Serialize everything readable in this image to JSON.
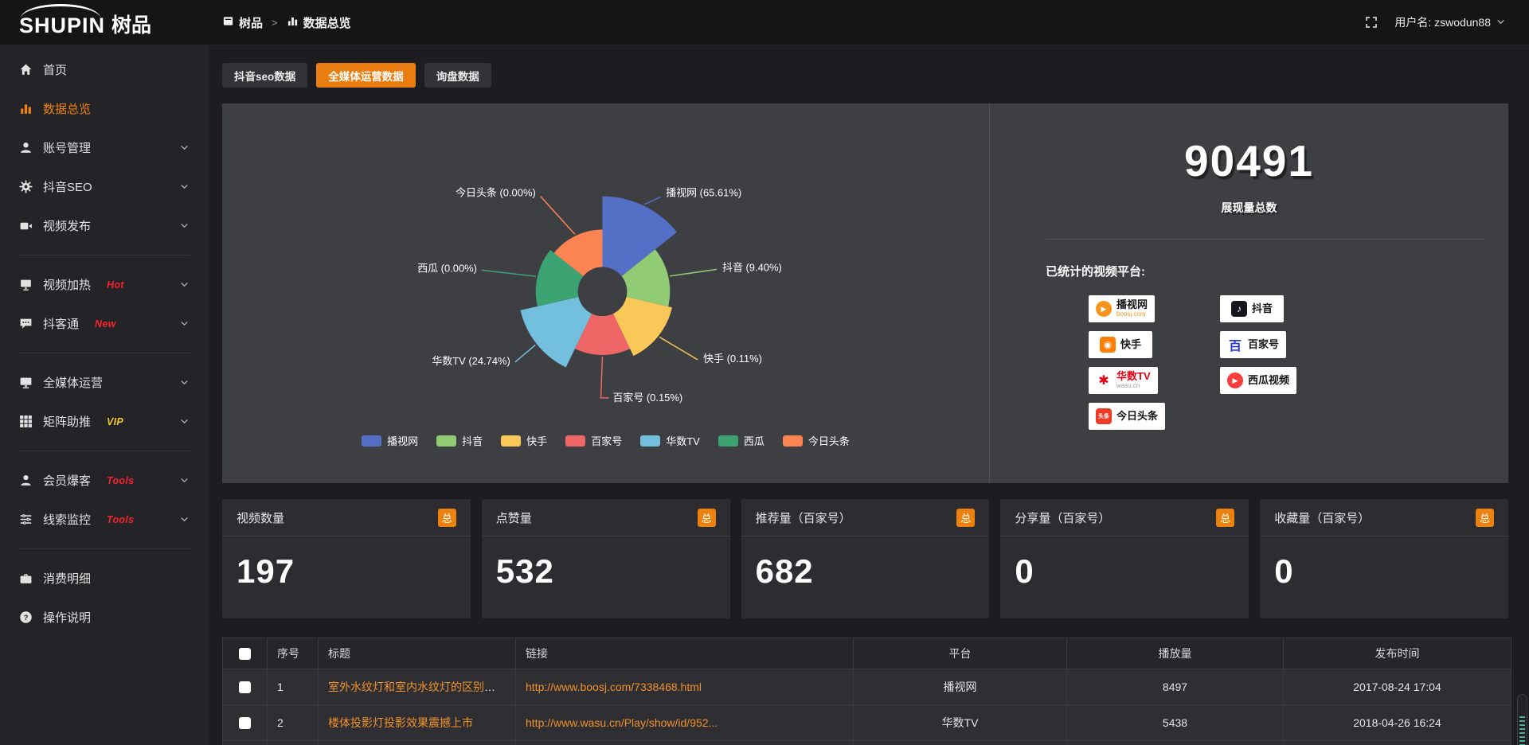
{
  "topbar": {
    "logo_main": "SHUPIN",
    "logo_cn": "树品",
    "breadcrumb": {
      "app": "树品",
      "separator": ">",
      "page": "数据总览"
    },
    "username": "用户名: zswodun88"
  },
  "colors": {
    "accent": "#ed810e",
    "link_text": "#f0922b",
    "hot_badge": "#f5222d",
    "vip_badge": "#f7c631"
  },
  "sidebar": {
    "items": [
      {
        "label": "首页",
        "icon": "home-icon"
      },
      {
        "label": "数据总览",
        "icon": "bar-chart-icon",
        "active": true
      },
      {
        "label": "账号管理",
        "icon": "user-icon",
        "chevron": true
      },
      {
        "label": "抖音SEO",
        "icon": "gear-icon",
        "chevron": true
      },
      {
        "label": "视频发布",
        "icon": "video-icon",
        "chevron": true
      },
      {
        "type": "divider"
      },
      {
        "label": "视频加热",
        "icon": "heat-icon",
        "badge": "Hot",
        "badge_color": "#f5222d",
        "chevron": true
      },
      {
        "label": "抖客通",
        "icon": "chat-icon",
        "badge": "New",
        "badge_color": "#f5222d",
        "chevron": true
      },
      {
        "type": "divider"
      },
      {
        "label": "全媒体运营",
        "icon": "monitor-icon",
        "chevron": true
      },
      {
        "label": "矩阵助推",
        "icon": "grid-icon",
        "badge": "VIP",
        "badge_color": "#f7c631",
        "chevron": true
      },
      {
        "type": "divider"
      },
      {
        "label": "会员爆客",
        "icon": "member-icon",
        "badge": "Tools",
        "badge_color": "#f5222d",
        "chevron": true
      },
      {
        "label": "线索监控",
        "icon": "sliders-icon",
        "badge": "Tools",
        "badge_color": "#f5222d",
        "chevron": true
      },
      {
        "type": "divider"
      },
      {
        "label": "消费明细",
        "icon": "wallet-icon"
      },
      {
        "label": "操作说明",
        "icon": "help-icon"
      }
    ]
  },
  "tabs": [
    {
      "label": "抖音seo数据"
    },
    {
      "label": "全媒体运营数据",
      "active": true
    },
    {
      "label": "询盘数据"
    }
  ],
  "chart_data": {
    "type": "pie",
    "variant": "nightingale-rose",
    "label_format": "{name} ({value}%)",
    "legend_position": "bottom",
    "items": [
      {
        "name": "播视网",
        "value": 65.61,
        "color": "#5470c6"
      },
      {
        "name": "抖音",
        "value": 9.4,
        "color": "#91cc75"
      },
      {
        "name": "快手",
        "value": 0.11,
        "color": "#fac858"
      },
      {
        "name": "百家号",
        "value": 0.15,
        "color": "#ee6666"
      },
      {
        "name": "华数TV",
        "value": 24.74,
        "color": "#73c0de"
      },
      {
        "name": "西瓜",
        "value": 0.0,
        "color": "#3ba272"
      },
      {
        "name": "今日头条",
        "value": 0.0,
        "color": "#fc8452"
      }
    ]
  },
  "summary": {
    "total_value": "90491",
    "total_label": "展现量总数",
    "platforms_title": "已统计的视频平台:",
    "platforms": [
      {
        "name": "播视网",
        "sub": "boosj.com",
        "sub_color": "#f7941d",
        "brand": "#f7941d",
        "shape": "circle",
        "glyph": "▶",
        "icon": "boosj-logo"
      },
      {
        "name": "抖音",
        "brand": "#16161f",
        "shape": "square",
        "glyph": "♪",
        "icon": "douyin-logo"
      },
      {
        "name": "快手",
        "brand": "#ff7e00",
        "shape": "square",
        "glyph": "◉",
        "icon": "kuaishou-logo"
      },
      {
        "name": "百家号",
        "brand": "#2932e1",
        "shape": "plain",
        "glyph": "百",
        "icon": "baijiahao-logo"
      },
      {
        "name": "华数TV",
        "name_color": "#e60012",
        "sub": "wasu.cn",
        "sub_color": "#9a9a9a",
        "brand": "#e60012",
        "shape": "plain",
        "glyph": "✱",
        "icon": "wasu-logo"
      },
      {
        "name": "西瓜视频",
        "brand": "#fa3d3d",
        "shape": "circle",
        "glyph": "▶",
        "icon": "xigua-logo"
      },
      {
        "name": "今日头条",
        "brand": "#ee3b28",
        "shape": "square",
        "glyph": "头条",
        "small_glyph": true,
        "icon": "toutiao-logo"
      }
    ]
  },
  "stat_cards": [
    {
      "title": "视频数量",
      "badge": "总",
      "value": "197"
    },
    {
      "title": "点赞量",
      "badge": "总",
      "value": "532"
    },
    {
      "title": "推荐量（百家号）",
      "badge": "总",
      "value": "682"
    },
    {
      "title": "分享量（百家号）",
      "badge": "总",
      "value": "0"
    },
    {
      "title": "收藏量（百家号）",
      "badge": "总",
      "value": "0"
    }
  ],
  "table": {
    "columns": [
      "",
      "序号",
      "标题",
      "链接",
      "平台",
      "播放量",
      "发布时间"
    ],
    "rows": [
      {
        "index": "1",
        "title": "室外水纹灯和室内水纹灯的区别和简介",
        "link": "http://www.boosj.com/7338468.html",
        "platform": "播视网",
        "plays": "8497",
        "time": "2017-08-24 17:04"
      },
      {
        "index": "2",
        "title": "楼体投影灯投影效果震撼上市",
        "link": "http://www.wasu.cn/Play/show/id/952...",
        "platform": "华数TV",
        "plays": "5438",
        "time": "2018-04-26 16:24"
      },
      {
        "index": "",
        "title": "",
        "link": "",
        "platform": "",
        "plays": "",
        "time": ""
      }
    ]
  }
}
